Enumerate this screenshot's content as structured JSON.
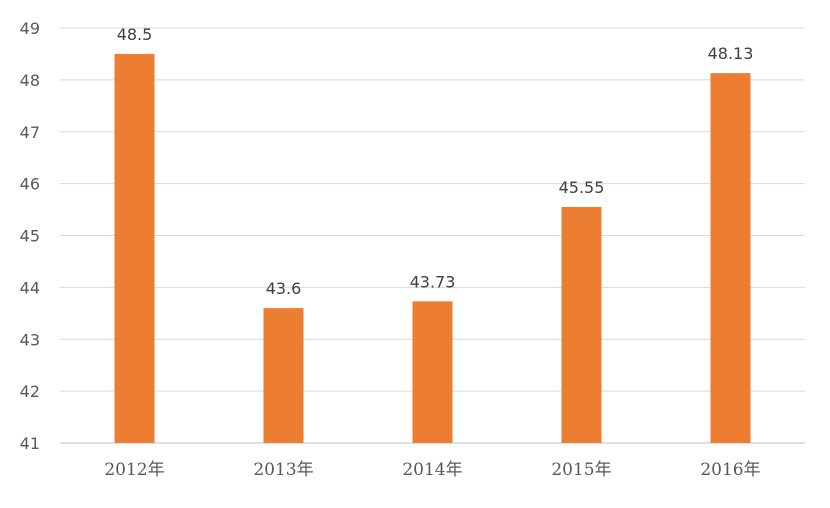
{
  "chart_data": {
    "type": "bar",
    "title": "",
    "xlabel": "",
    "ylabel": "",
    "categories": [
      "2012年",
      "2013年",
      "2014年",
      "2015年",
      "2016年"
    ],
    "values": [
      48.5,
      43.6,
      43.73,
      45.55,
      48.13
    ],
    "data_labels": [
      "48.5",
      "43.6",
      "43.73",
      "45.55",
      "48.13"
    ],
    "yticks": [
      "41",
      "42",
      "43",
      "44",
      "45",
      "46",
      "47",
      "48",
      "49"
    ],
    "ylim": [
      41,
      49
    ],
    "grid": true,
    "legend": "none",
    "colors": {
      "bar": "#ED7D31",
      "grid": "#D9D9D9",
      "axis": "#BFBFBF",
      "tick_text": "#595959",
      "label_text": "#404040"
    }
  }
}
